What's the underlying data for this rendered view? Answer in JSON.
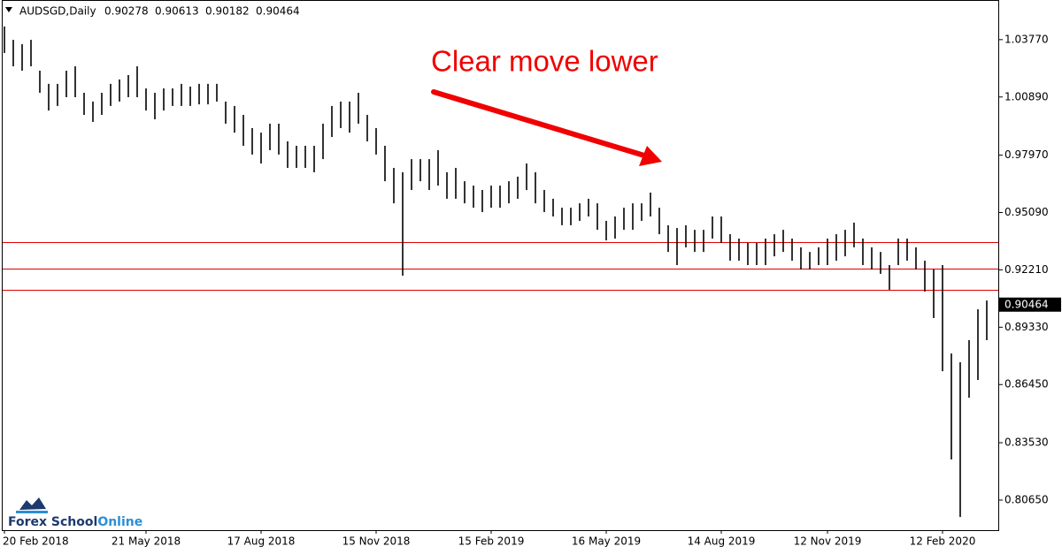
{
  "chart_data": {
    "type": "range_bar",
    "header": {
      "symbol": "AUDSGD,Daily",
      "open": 0.90278,
      "high": 0.90613,
      "low": 0.90182,
      "close": 0.90464
    },
    "annotation": "Clear move lower",
    "logo": {
      "text1": "Forex School",
      "text2": "Online"
    },
    "color": "#000000",
    "hline_color": "#e00000",
    "hlines": [
      0.936,
      0.9227,
      0.9121
    ],
    "ylim": [
      0.7914,
      1.0576
    ],
    "yticks": [
      {
        "value": 1.0377,
        "label": "1.03770"
      },
      {
        "value": 1.0089,
        "label": "1.00890"
      },
      {
        "value": 0.9797,
        "label": "0.97970"
      },
      {
        "value": 0.9509,
        "label": "0.95090"
      },
      {
        "value": 0.9221,
        "label": "0.92210"
      },
      {
        "value": 0.8933,
        "label": "0.89330"
      },
      {
        "value": 0.8645,
        "label": "0.86450"
      },
      {
        "value": 0.8353,
        "label": "0.83530"
      },
      {
        "value": 0.8065,
        "label": "0.80650"
      }
    ],
    "categories": [
      "20 Feb 2018",
      null,
      null,
      null,
      null,
      null,
      null,
      null,
      null,
      null,
      null,
      null,
      null,
      null,
      null,
      null,
      "21 May 2018",
      null,
      null,
      null,
      null,
      null,
      null,
      null,
      null,
      null,
      null,
      null,
      null,
      "17 Aug 2018",
      null,
      null,
      null,
      null,
      null,
      null,
      null,
      null,
      null,
      null,
      null,
      null,
      "15 Nov 2018",
      null,
      null,
      null,
      null,
      null,
      null,
      null,
      null,
      null,
      null,
      null,
      null,
      "15 Feb 2019",
      null,
      null,
      null,
      null,
      null,
      null,
      null,
      null,
      null,
      null,
      null,
      null,
      "16 May 2019",
      null,
      null,
      null,
      null,
      null,
      null,
      null,
      null,
      null,
      null,
      null,
      null,
      "14 Aug 2019",
      null,
      null,
      null,
      null,
      null,
      null,
      null,
      null,
      null,
      null,
      null,
      "12 Nov 2019",
      null,
      null,
      null,
      null,
      null,
      null,
      null,
      null,
      null,
      null,
      null,
      null,
      "12 Feb 2020",
      null,
      null,
      null,
      null,
      null
    ],
    "high": [
      1.0443,
      1.0376,
      1.0354,
      1.0376,
      1.0221,
      1.0155,
      1.0155,
      1.0221,
      1.0243,
      1.011,
      1.0066,
      1.011,
      1.0155,
      1.0177,
      1.0199,
      1.0243,
      1.0132,
      1.011,
      1.0132,
      1.0132,
      1.0155,
      1.0141,
      1.0155,
      1.0155,
      1.0155,
      1.0066,
      1.0044,
      0.9999,
      0.9933,
      0.991,
      0.9955,
      0.9955,
      0.9866,
      0.9844,
      0.9844,
      0.9844,
      0.9955,
      1.0044,
      1.0066,
      1.0066,
      1.011,
      0.9999,
      0.9933,
      0.9844,
      0.9733,
      0.9711,
      0.9777,
      0.9777,
      0.9777,
      0.9822,
      0.9711,
      0.9733,
      0.9666,
      0.9644,
      0.9622,
      0.9644,
      0.9644,
      0.9666,
      0.9689,
      0.9755,
      0.9711,
      0.9622,
      0.9578,
      0.9533,
      0.9533,
      0.9555,
      0.9578,
      0.9555,
      0.9467,
      0.9489,
      0.9533,
      0.9555,
      0.9555,
      0.9609,
      0.9533,
      0.9445,
      0.9431,
      0.9445,
      0.9422,
      0.9422,
      0.9489,
      0.9489,
      0.94,
      0.9378,
      0.9356,
      0.9356,
      0.9378,
      0.94,
      0.9422,
      0.9378,
      0.9334,
      0.9311,
      0.9334,
      0.9378,
      0.94,
      0.9422,
      0.9458,
      0.9378,
      0.9334,
      0.9311,
      0.9245,
      0.9378,
      0.9378,
      0.9334,
      0.9267,
      0.9223,
      0.9245,
      0.8801,
      0.8757,
      0.8868,
      0.9023,
      0.9067
    ],
    "low": [
      1.031,
      1.0243,
      1.0221,
      1.0243,
      1.011,
      1.0021,
      1.0044,
      1.0088,
      1.0088,
      0.9999,
      0.9964,
      0.9999,
      1.0044,
      1.0066,
      1.0088,
      1.0088,
      1.0021,
      0.9977,
      1.0021,
      1.0044,
      1.0044,
      1.0044,
      1.0052,
      1.0052,
      1.0066,
      0.9955,
      0.991,
      0.9844,
      0.98,
      0.9755,
      0.9822,
      0.98,
      0.9733,
      0.9733,
      0.9733,
      0.9711,
      0.9777,
      0.9888,
      0.9933,
      0.991,
      0.9955,
      0.9866,
      0.98,
      0.9666,
      0.9555,
      0.9192,
      0.9622,
      0.9666,
      0.9622,
      0.9644,
      0.9578,
      0.9578,
      0.9555,
      0.9533,
      0.9511,
      0.9533,
      0.9533,
      0.9555,
      0.9578,
      0.9622,
      0.9555,
      0.9511,
      0.9489,
      0.9445,
      0.9445,
      0.9467,
      0.9489,
      0.9422,
      0.9369,
      0.9378,
      0.9422,
      0.9422,
      0.9467,
      0.9489,
      0.94,
      0.9311,
      0.9245,
      0.9334,
      0.9311,
      0.9311,
      0.9378,
      0.9356,
      0.9267,
      0.9267,
      0.9245,
      0.9245,
      0.9245,
      0.9289,
      0.9311,
      0.9267,
      0.9223,
      0.9223,
      0.9245,
      0.9245,
      0.9267,
      0.9289,
      0.9334,
      0.9245,
      0.9223,
      0.9201,
      0.9121,
      0.9245,
      0.9267,
      0.9223,
      0.9112,
      0.8979,
      0.8712,
      0.8269,
      0.798,
      0.8579,
      0.8668,
      0.8868
    ]
  }
}
